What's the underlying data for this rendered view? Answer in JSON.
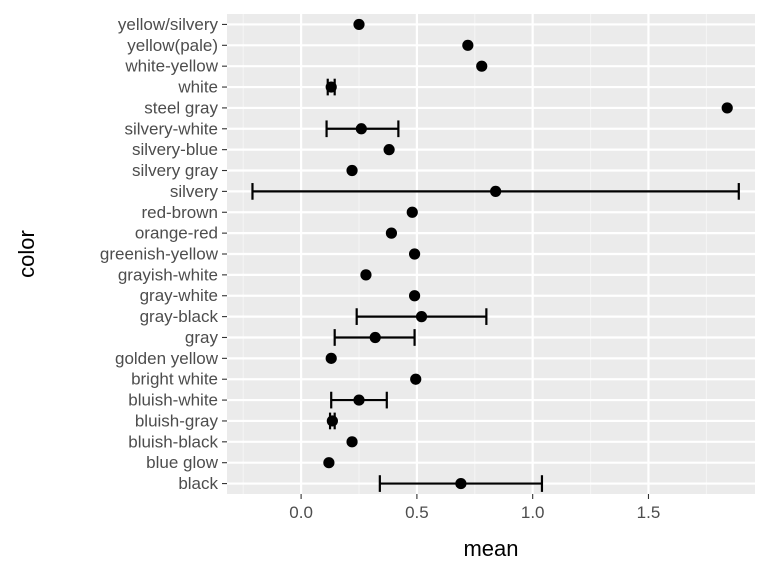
{
  "chart_data": {
    "type": "scatter",
    "xlabel": "mean",
    "ylabel": "color",
    "xlim": [
      -0.32,
      1.96
    ],
    "x_ticks": [
      0.0,
      0.5,
      1.0,
      1.5
    ],
    "x_tick_labels": [
      "0.0",
      "0.5",
      "1.0",
      "1.5"
    ],
    "grid": true,
    "categories": [
      "black",
      "blue glow",
      "bluish-black",
      "bluish-gray",
      "bluish-white",
      "bright white",
      "golden yellow",
      "gray",
      "gray-black",
      "gray-white",
      "grayish-white",
      "greenish-yellow",
      "orange-red",
      "red-brown",
      "silvery",
      "silvery gray",
      "silvery-blue",
      "silvery-white",
      "steel gray",
      "white",
      "white-yellow",
      "yellow(pale)",
      "yellow/silvery"
    ],
    "points": [
      {
        "color": "black",
        "mean": 0.69,
        "lower": 0.34,
        "upper": 1.04
      },
      {
        "color": "blue glow",
        "mean": 0.12,
        "lower": null,
        "upper": null
      },
      {
        "color": "bluish-black",
        "mean": 0.22,
        "lower": null,
        "upper": null
      },
      {
        "color": "bluish-gray",
        "mean": 0.135,
        "lower": 0.125,
        "upper": 0.145
      },
      {
        "color": "bluish-white",
        "mean": 0.25,
        "lower": 0.13,
        "upper": 0.37
      },
      {
        "color": "bright white",
        "mean": 0.495,
        "lower": null,
        "upper": null
      },
      {
        "color": "golden yellow",
        "mean": 0.13,
        "lower": null,
        "upper": null
      },
      {
        "color": "gray",
        "mean": 0.32,
        "lower": 0.145,
        "upper": 0.49
      },
      {
        "color": "gray-black",
        "mean": 0.52,
        "lower": 0.24,
        "upper": 0.8
      },
      {
        "color": "gray-white",
        "mean": 0.49,
        "lower": null,
        "upper": null
      },
      {
        "color": "grayish-white",
        "mean": 0.28,
        "lower": null,
        "upper": null
      },
      {
        "color": "greenish-yellow",
        "mean": 0.49,
        "lower": null,
        "upper": null
      },
      {
        "color": "orange-red",
        "mean": 0.39,
        "lower": null,
        "upper": null
      },
      {
        "color": "red-brown",
        "mean": 0.48,
        "lower": null,
        "upper": null
      },
      {
        "color": "silvery",
        "mean": 0.84,
        "lower": -0.21,
        "upper": 1.89
      },
      {
        "color": "silvery gray",
        "mean": 0.22,
        "lower": null,
        "upper": null
      },
      {
        "color": "silvery-blue",
        "mean": 0.38,
        "lower": null,
        "upper": null
      },
      {
        "color": "silvery-white",
        "mean": 0.26,
        "lower": 0.11,
        "upper": 0.42
      },
      {
        "color": "steel gray",
        "mean": 1.84,
        "lower": null,
        "upper": null
      },
      {
        "color": "white",
        "mean": 0.13,
        "lower": 0.115,
        "upper": 0.145
      },
      {
        "color": "white-yellow",
        "mean": 0.78,
        "lower": null,
        "upper": null
      },
      {
        "color": "yellow(pale)",
        "mean": 0.72,
        "lower": null,
        "upper": null
      },
      {
        "color": "yellow/silvery",
        "mean": 0.25,
        "lower": null,
        "upper": null
      }
    ],
    "colors": {
      "panel_background": "#ebebeb",
      "grid_major": "#ffffff",
      "grid_minor": "#f5f5f5",
      "point": "#000000",
      "tick_label": "#4d4d4d"
    }
  }
}
